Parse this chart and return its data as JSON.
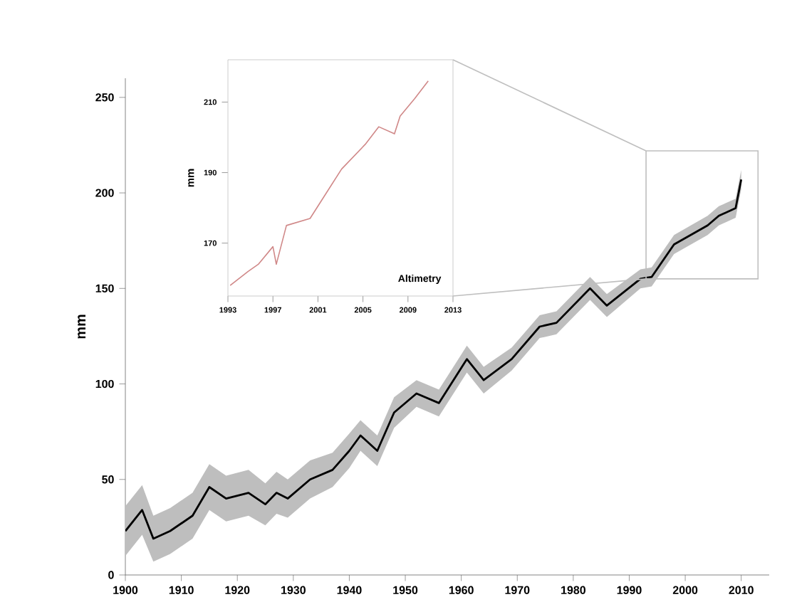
{
  "chart_data": [
    {
      "type": "line",
      "ylabel": "mm",
      "xlim": [
        1900,
        2015
      ],
      "ylim": [
        0,
        260
      ],
      "xticks": [
        1900,
        1910,
        1920,
        1930,
        1940,
        1950,
        1960,
        1970,
        1980,
        1990,
        2000,
        2010
      ],
      "yticks": [
        0,
        50,
        100,
        150,
        200,
        250
      ],
      "series": [
        {
          "color": "#000000",
          "x": [
            1900,
            1903,
            1905,
            1908,
            1912,
            1915,
            1918,
            1922,
            1925,
            1927,
            1929,
            1933,
            1937,
            1940,
            1942,
            1945,
            1948,
            1952,
            1956,
            1961,
            1964,
            1969,
            1974,
            1977,
            1983,
            1986,
            1992,
            1994,
            1998,
            2004,
            2006,
            2009,
            2010
          ],
          "values": [
            23,
            34,
            19,
            23,
            31,
            46,
            40,
            43,
            37,
            43,
            40,
            50,
            55,
            65,
            73,
            65,
            85,
            95,
            90,
            113,
            102,
            113,
            130,
            132,
            150,
            141,
            155,
            156,
            173,
            183,
            188,
            192,
            207
          ],
          "lower": [
            10,
            21,
            7,
            11,
            19,
            34,
            28,
            31,
            26,
            32,
            30,
            40,
            46,
            56,
            65,
            57,
            77,
            88,
            83,
            106,
            95,
            107,
            124,
            126,
            144,
            135,
            150,
            151,
            168,
            178,
            183,
            187,
            202
          ],
          "upper": [
            36,
            47,
            31,
            35,
            43,
            58,
            52,
            55,
            48,
            54,
            50,
            60,
            64,
            74,
            81,
            73,
            93,
            102,
            97,
            120,
            109,
            119,
            136,
            138,
            156,
            147,
            160,
            161,
            178,
            188,
            193,
            197,
            212
          ]
        }
      ]
    },
    {
      "type": "line",
      "ylabel": "mm",
      "xlim": [
        1993,
        2013
      ],
      "ylim": [
        155,
        222
      ],
      "xticks": [
        1993,
        1997,
        2001,
        2005,
        2009,
        2013
      ],
      "yticks": [
        170,
        190,
        210
      ],
      "annotations": [
        "Altimetry"
      ],
      "series": [
        {
          "color": "#d08888",
          "x": [
            1993.2,
            1994.8,
            1995.7,
            1997,
            1997.3,
            1998.2,
            2000.3,
            2001.5,
            2003.1,
            2005.2,
            2006.4,
            2007.8,
            2008.3,
            2009.6,
            2010.8
          ],
          "values": [
            158,
            162,
            164,
            169,
            164,
            175,
            177,
            183,
            191,
            198,
            203,
            201,
            206,
            211,
            216
          ]
        }
      ]
    }
  ]
}
